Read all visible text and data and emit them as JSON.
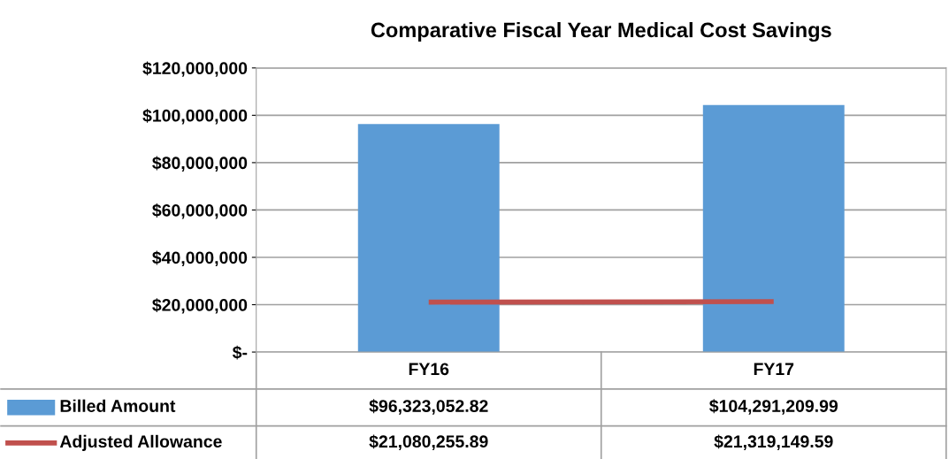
{
  "chart_data": {
    "type": "bar",
    "title": "Comparative Fiscal Year Medical Cost Savings",
    "categories": [
      "FY16",
      "FY17"
    ],
    "series": [
      {
        "name": "Billed Amount",
        "color": "#5b9bd5",
        "values": [
          96323052.82,
          104291209.99
        ],
        "value_labels": [
          "$96,323,052.82",
          "$104,291,209.99"
        ]
      },
      {
        "name": "Adjusted Allowance",
        "type": "line",
        "color": "#c0504d",
        "values": [
          21080255.89,
          21319149.59
        ],
        "value_labels": [
          "$21,080,255.89",
          "$21,319,149.59"
        ]
      }
    ],
    "ylim": [
      0,
      120000000
    ],
    "yticks": [
      {
        "value": 0,
        "label": "$-"
      },
      {
        "value": 20000000,
        "label": "$20,000,000"
      },
      {
        "value": 40000000,
        "label": "$40,000,000"
      },
      {
        "value": 60000000,
        "label": "$60,000,000"
      },
      {
        "value": 80000000,
        "label": "$80,000,000"
      },
      {
        "value": 100000000,
        "label": "$100,000,000"
      },
      {
        "value": 120000000,
        "label": "$120,000,000"
      }
    ],
    "grid": "y",
    "legend": "bottom",
    "marker": "none"
  }
}
